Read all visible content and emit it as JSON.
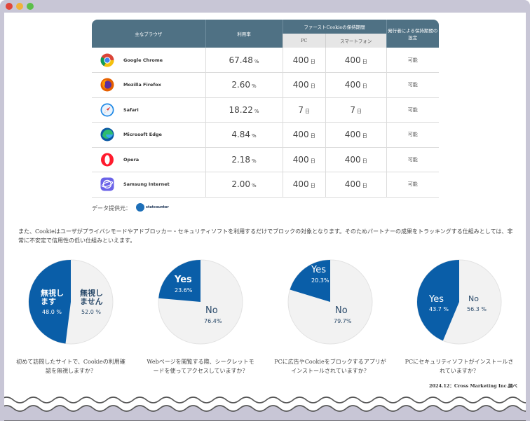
{
  "table": {
    "headers": {
      "browser": "主なブラウザ",
      "usage": "利用率",
      "first_party": "ファーストCookieの保持期間",
      "pc": "PC",
      "smartphone": "スマートフォン",
      "publisher": "発行者による保持期間の設定"
    },
    "rows": [
      {
        "name": "Google Chrome",
        "icon": "chrome-icon",
        "usage": "67.48",
        "unit": "%",
        "pc": "400",
        "sp": "400",
        "day": "日",
        "setting": "可能"
      },
      {
        "name": "Mozilla Firefox",
        "icon": "firefox-icon",
        "usage": "2.60",
        "unit": "%",
        "pc": "400",
        "sp": "400",
        "day": "日",
        "setting": "可能"
      },
      {
        "name": "Safari",
        "icon": "safari-icon",
        "usage": "18.22",
        "unit": "%",
        "pc": "7",
        "sp": "7",
        "day": "日",
        "setting": "可能"
      },
      {
        "name": "Microsoft Edge",
        "icon": "edge-icon",
        "usage": "4.84",
        "unit": "%",
        "pc": "400",
        "sp": "400",
        "day": "日",
        "setting": "可能"
      },
      {
        "name": "Opera",
        "icon": "opera-icon",
        "usage": "2.18",
        "unit": "%",
        "pc": "400",
        "sp": "400",
        "day": "日",
        "setting": "可能"
      },
      {
        "name": "Samsung Internet",
        "icon": "samsung-internet-icon",
        "usage": "2.00",
        "unit": "%",
        "pc": "400",
        "sp": "400",
        "day": "日",
        "setting": "可能"
      }
    ],
    "source_label": "データ提供元：",
    "source_logo_text": "statcounter"
  },
  "paragraph": "また、Cookieはユーザがプライバシモードやアドブロッカー・セキュリティソフトを利用するだけでブロックの対象となります。そのためパートナーの成果をトラッキングする仕組みとしては、非常に不安定で信用性の低い仕組みといえます。",
  "pies": [
    {
      "question": "初めて訪問したサイトで、Cookieの利用確認を無視しますか？",
      "a_label": "無視します",
      "a_pct": "48.0 %",
      "a_value": 48.0,
      "b_label": "無視しません",
      "b_pct": "52.0 %",
      "b_value": 52.0
    },
    {
      "question": "Webページを閲覧する際、シークレットモードを使ってアクセスしていますか？",
      "a_label": "Yes",
      "a_pct": "23.6%",
      "a_value": 23.6,
      "b_label": "No",
      "b_pct": "76.4%",
      "b_value": 76.4
    },
    {
      "question": "PCに広告やCookieをブロックするアプリがインストールされていますか？",
      "a_label": "Yes",
      "a_pct": "20.3%",
      "a_value": 20.3,
      "b_label": "No",
      "b_pct": "79.7%",
      "b_value": 79.7
    },
    {
      "question": "PCにセキュリティソフトがインストールされていますか？",
      "a_label": "Yes",
      "a_pct": "43.7 %",
      "a_value": 43.7,
      "b_label": "No",
      "b_pct": "56.3 %",
      "b_value": 56.3
    }
  ],
  "colors": {
    "accent": "#0a5ea8",
    "light": "#f2f2f2",
    "header": "#4f7184"
  },
  "credit": "2024.12：Cross Marketing Inc.調べ"
}
